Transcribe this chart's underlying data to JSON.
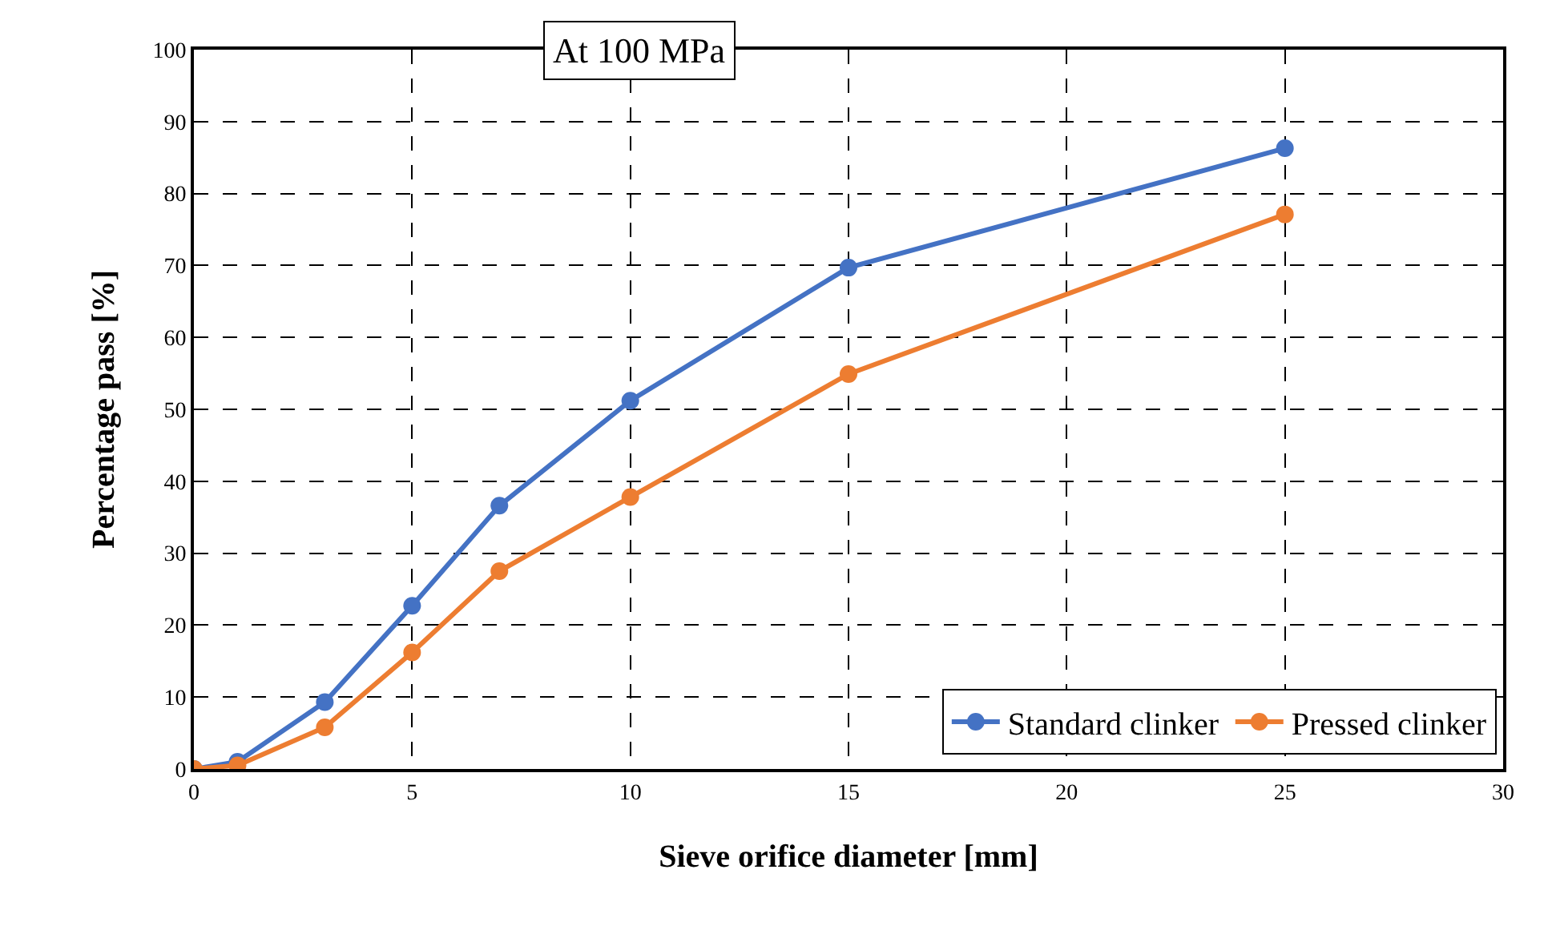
{
  "chart_data": {
    "type": "line",
    "title": "At 100 MPa",
    "xlabel": "Sieve orifice diameter [mm]",
    "ylabel": "Percentage pass [%]",
    "x": [
      0,
      1,
      3,
      5,
      7,
      10,
      15,
      25
    ],
    "series": [
      {
        "name": "Standard clinker",
        "color": "#4472c4",
        "values": [
          0,
          1,
          9.3,
          22.7,
          36.6,
          51.2,
          69.7,
          86.3
        ]
      },
      {
        "name": "Pressed clinker",
        "color": "#ed7d31",
        "values": [
          0,
          0.5,
          5.8,
          16.2,
          27.5,
          37.8,
          54.9,
          77.1
        ]
      }
    ],
    "xlim": [
      0,
      30
    ],
    "xticks": [
      0,
      5,
      10,
      15,
      20,
      25,
      30
    ],
    "ylim": [
      0,
      100
    ],
    "yticks": [
      0,
      10,
      20,
      30,
      40,
      50,
      60,
      70,
      80,
      90,
      100
    ],
    "grid": true,
    "legend": "bottom right",
    "marker": "circle",
    "line_style": "solid"
  }
}
